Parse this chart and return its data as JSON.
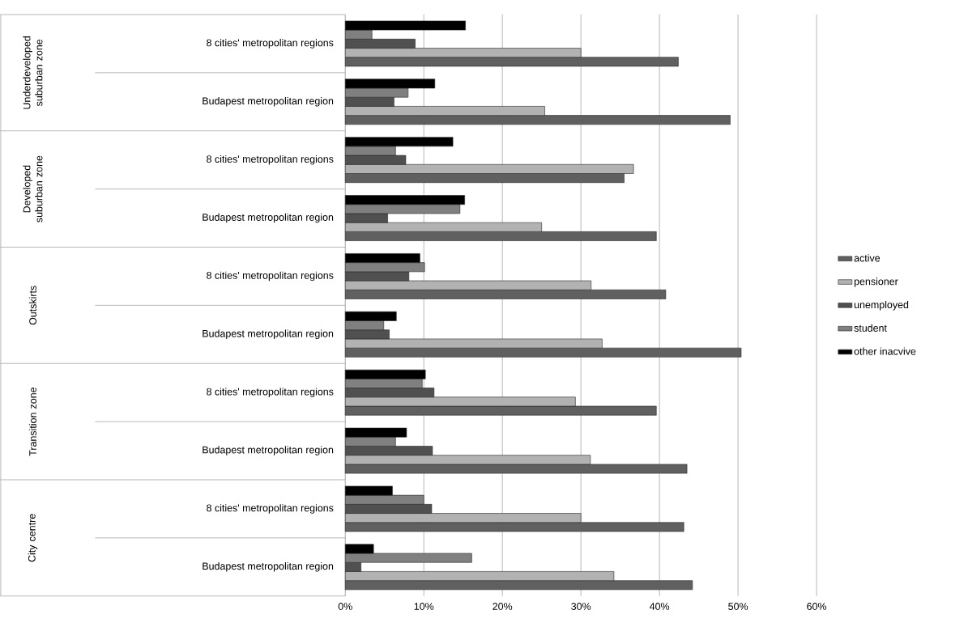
{
  "chart_data": {
    "type": "bar",
    "orientation": "horizontal",
    "categories": [
      "8 cities' metropolitan regions",
      "Budapest metropolitan region",
      "8 cities' metropolitan regions",
      "Budapest metropolitan region",
      "8 cities' metropolitan regions",
      "Budapest metropolitan region",
      "8 cities' metropolitan regions",
      "Budapest metropolitan region",
      "8 cities' metropolitan regions",
      "Budapest metropolitan region"
    ],
    "series": [
      {
        "name": "active",
        "color": "#606060",
        "values": [
          42.4,
          49.0,
          35.5,
          39.6,
          40.8,
          50.4,
          39.6,
          43.5,
          43.1,
          44.2
        ]
      },
      {
        "name": "pensioner",
        "color": "#b2b2b2",
        "values": [
          30.0,
          25.4,
          36.7,
          25.0,
          31.3,
          32.7,
          29.3,
          31.2,
          30.0,
          34.2
        ]
      },
      {
        "name": "unemployed",
        "color": "#505050",
        "values": [
          8.9,
          6.2,
          7.7,
          5.4,
          8.1,
          5.6,
          11.3,
          11.1,
          11.0,
          2.0
        ]
      },
      {
        "name": "student",
        "color": "#808080",
        "values": [
          3.4,
          8.0,
          6.4,
          14.6,
          10.1,
          4.9,
          9.8,
          6.4,
          10.0,
          16.1
        ]
      },
      {
        "name": "other inacvive",
        "color": "#000000",
        "values": [
          15.3,
          11.4,
          13.7,
          15.2,
          9.5,
          6.5,
          10.2,
          7.8,
          6.0,
          3.6
        ]
      }
    ],
    "xlim": [
      0,
      60
    ],
    "xticks": [
      {
        "value": 0,
        "label": "0%"
      },
      {
        "value": 10,
        "label": "10%"
      },
      {
        "value": 20,
        "label": "20%"
      },
      {
        "value": 30,
        "label": "30%"
      },
      {
        "value": 40,
        "label": "40%"
      },
      {
        "value": 50,
        "label": "50%"
      },
      {
        "value": 60,
        "label": "60%"
      }
    ],
    "annotations": [
      "Underdeveloped suburban zone",
      "Developed suburban zone",
      "Outskirts",
      "Transition zone",
      "City centre"
    ],
    "grid": "x",
    "legend": "right"
  }
}
